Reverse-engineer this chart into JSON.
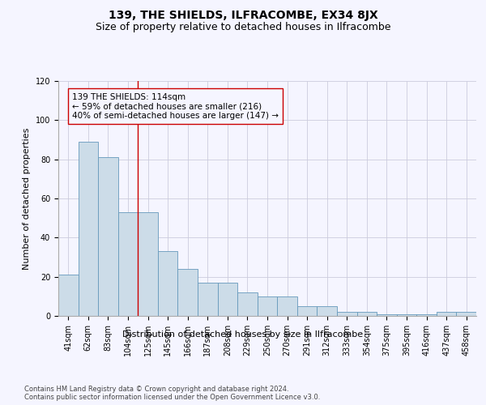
{
  "title": "139, THE SHIELDS, ILFRACOMBE, EX34 8JX",
  "subtitle": "Size of property relative to detached houses in Ilfracombe",
  "xlabel": "Distribution of detached houses by size in Ilfracombe",
  "ylabel": "Number of detached properties",
  "footer_line1": "Contains HM Land Registry data © Crown copyright and database right 2024.",
  "footer_line2": "Contains public sector information licensed under the Open Government Licence v3.0.",
  "categories": [
    "41sqm",
    "62sqm",
    "83sqm",
    "104sqm",
    "125sqm",
    "145sqm",
    "166sqm",
    "187sqm",
    "208sqm",
    "229sqm",
    "250sqm",
    "270sqm",
    "291sqm",
    "312sqm",
    "333sqm",
    "354sqm",
    "375sqm",
    "395sqm",
    "416sqm",
    "437sqm",
    "458sqm"
  ],
  "values": [
    21,
    89,
    81,
    53,
    53,
    33,
    24,
    17,
    17,
    12,
    10,
    10,
    5,
    5,
    2,
    2,
    1,
    1,
    1,
    2,
    2
  ],
  "bar_color": "#ccdce8",
  "bar_edge_color": "#6699bb",
  "annotation_box_text": "139 THE SHIELDS: 114sqm\n← 59% of detached houses are smaller (216)\n40% of semi-detached houses are larger (147) →",
  "vline_x": 3.5,
  "vline_color": "#cc0000",
  "ylim": [
    0,
    120
  ],
  "yticks": [
    0,
    20,
    40,
    60,
    80,
    100,
    120
  ],
  "background_color": "#f5f5ff",
  "grid_color": "#ccccdd",
  "title_fontsize": 10,
  "subtitle_fontsize": 9,
  "axis_label_fontsize": 8,
  "tick_fontsize": 7,
  "annotation_fontsize": 7.5,
  "footer_fontsize": 6
}
